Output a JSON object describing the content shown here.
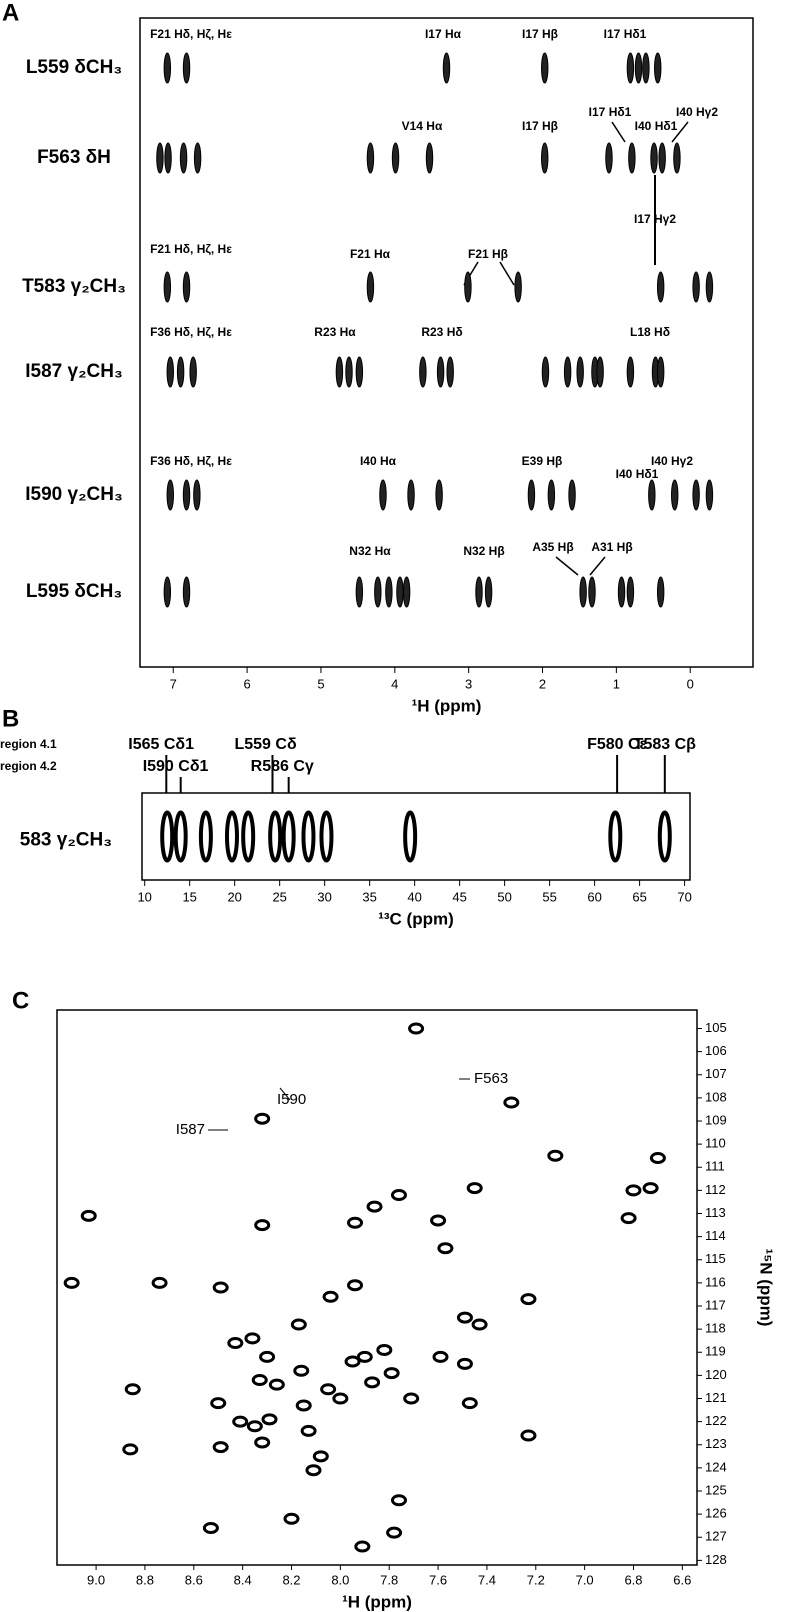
{
  "chart_data": [
    {
      "type": "strips",
      "panel": "A",
      "xlabel": "¹H (ppm)",
      "xlim": [
        7.45,
        -0.85
      ],
      "xticks": [
        7,
        6,
        5,
        4,
        3,
        2,
        1,
        0
      ],
      "rows": [
        {
          "label": "L559 δCH₃",
          "annotations": [
            "F21 Hδ, Hζ, Hε",
            "I17 Hα",
            "I17 Hβ",
            "I17 Hδ1"
          ],
          "peaks": [
            7.08,
            6.82,
            3.3,
            1.97,
            0.81,
            0.7,
            0.6,
            0.44
          ]
        },
        {
          "label": "F563 δH",
          "annotations": [
            "V14 Hα",
            "I17 Hβ",
            "I17 Hδ1",
            "I40 Hδ1",
            "I40 Hγ2",
            "I17 Hγ2"
          ],
          "peaks": [
            7.18,
            7.07,
            6.86,
            6.67,
            4.33,
            3.99,
            3.53,
            1.97,
            1.1,
            0.79,
            0.49,
            0.38,
            0.18
          ]
        },
        {
          "label": "T583 γ₂CH₃",
          "annotations": [
            "F21 Hδ, Hζ, Hε",
            "F21 Hα",
            "F21 Hβ"
          ],
          "peaks": [
            7.08,
            6.82,
            4.33,
            3.01,
            2.33,
            0.4,
            -0.08,
            -0.26
          ]
        },
        {
          "label": "I587 γ₂CH₃",
          "annotations": [
            "F36 Hδ, Hζ, Hε",
            "R23 Hα",
            "R23 Hδ",
            "L18 Hδ"
          ],
          "peaks": [
            7.04,
            6.9,
            6.73,
            4.75,
            4.62,
            4.48,
            3.62,
            3.38,
            3.25,
            1.96,
            1.66,
            1.49,
            1.29,
            1.22,
            0.81,
            0.47,
            0.4
          ]
        },
        {
          "label": "I590 γ₂CH₃",
          "annotations": [
            "F36 Hδ, Hζ, Hε",
            "I40 Hα",
            "E39 Hβ",
            "I40 Hγ2",
            "I40 Hδ1"
          ],
          "peaks": [
            7.04,
            6.82,
            6.68,
            4.16,
            3.78,
            3.4,
            2.15,
            1.88,
            1.6,
            0.52,
            0.21,
            -0.08,
            -0.26
          ]
        },
        {
          "label": "L595 δCH₃",
          "annotations": [
            "N32 Hα",
            "N32 Hβ",
            "A35 Hβ",
            "A31 Hβ"
          ],
          "peaks": [
            7.08,
            6.82,
            4.48,
            4.23,
            4.08,
            3.93,
            3.84,
            2.86,
            2.73,
            1.45,
            1.33,
            0.93,
            0.81,
            0.4
          ]
        }
      ]
    },
    {
      "type": "strip",
      "panel": "B",
      "xlabel": "¹³C (ppm)",
      "xlim": [
        9.7,
        70.6
      ],
      "xticks": [
        10,
        15,
        20,
        25,
        30,
        35,
        40,
        45,
        50,
        55,
        60,
        65,
        70
      ],
      "row_label": "583 γ₂CH₃",
      "regions": [
        "region 4.1",
        "region 4.2"
      ],
      "markers": [
        {
          "label": "I565 Cδ1",
          "value": 12.4
        },
        {
          "label": "I590 Cδ1",
          "value": 14
        },
        {
          "label": "L559 Cδ",
          "value": 24.2
        },
        {
          "label": "R586 Cγ",
          "value": 26
        },
        {
          "label": "F580 Cε",
          "value": 62.5
        },
        {
          "label": "T583 Cβ",
          "value": 67.8
        }
      ],
      "peaks": [
        12.5,
        14,
        16.8,
        19.7,
        21.5,
        24.5,
        26,
        28.2,
        30.2,
        39.5,
        62.3,
        67.8
      ]
    },
    {
      "type": "scatter",
      "panel": "C",
      "xlabel": "¹H (ppm)",
      "ylabel": "¹⁵N (ppm)",
      "xlim": [
        9.16,
        6.54
      ],
      "ylim": [
        104.2,
        128.2
      ],
      "xticks": [
        {
          "value": 9,
          "label": "9.0"
        },
        8.8,
        8.6,
        8.4,
        8.2,
        {
          "value": 8,
          "label": "8.0"
        },
        7.8,
        7.6,
        7.4,
        7.2,
        {
          "value": 7,
          "label": "7.0"
        },
        6.8,
        6.6
      ],
      "yticks": [
        105,
        106,
        107,
        108,
        109,
        110,
        111,
        112,
        113,
        114,
        115,
        116,
        117,
        118,
        119,
        120,
        121,
        122,
        123,
        124,
        125,
        126,
        127,
        128
      ],
      "x": [
        7.69,
        7.3,
        8.32,
        7.12,
        6.7,
        6.8,
        6.73,
        7.76,
        7.86,
        7.45,
        9.03,
        8.32,
        7.94,
        7.6,
        6.82,
        7.57,
        9.1,
        8.74,
        8.49,
        7.94,
        8.04,
        7.23,
        7.49,
        7.43,
        8.17,
        8.36,
        8.43,
        7.82,
        7.9,
        7.59,
        8.3,
        8.16,
        7.49,
        7.95,
        8.33,
        7.79,
        8.85,
        8.26,
        8.05,
        7.87,
        8.15,
        8.0,
        7.71,
        7.47,
        8.5,
        8.41,
        8.35,
        8.29,
        8.13,
        8.49,
        8.86,
        8.32,
        8.08,
        8.11,
        7.76,
        8.2,
        8.53,
        7.78,
        7.91,
        7.23
      ],
      "y": [
        105.0,
        108.2,
        108.9,
        110.5,
        110.6,
        112.0,
        111.9,
        112.2,
        112.7,
        111.9,
        113.1,
        113.5,
        113.4,
        113.3,
        113.2,
        114.5,
        116.0,
        116.0,
        116.2,
        116.1,
        116.6,
        116.7,
        117.5,
        117.8,
        117.8,
        118.4,
        118.6,
        118.9,
        119.2,
        119.2,
        119.2,
        119.8,
        119.5,
        119.4,
        120.2,
        119.9,
        120.6,
        120.4,
        120.6,
        120.3,
        121.3,
        121.0,
        121.0,
        121.2,
        121.2,
        122.0,
        122.2,
        121.9,
        122.4,
        123.1,
        123.2,
        122.9,
        123.5,
        124.1,
        125.4,
        126.2,
        126.6,
        126.8,
        127.4,
        122.6
      ],
      "annotations": [
        "F563",
        "I587",
        "I590"
      ]
    }
  ]
}
